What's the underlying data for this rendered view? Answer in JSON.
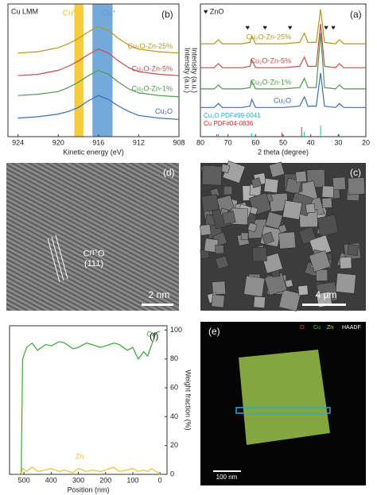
{
  "chart_data": [
    {
      "type": "line",
      "panel": "(b)",
      "title": "Cu LMM",
      "xlabel": "Kinetic energy (eV)",
      "ylabel": "Intensity (a.u.)",
      "xlim": [
        925,
        908
      ],
      "xticks": [
        924,
        920,
        916,
        912,
        908
      ],
      "ylim": [
        0,
        100
      ],
      "x": [
        924,
        922,
        920,
        919,
        918,
        917,
        916,
        915,
        914,
        913,
        912,
        910,
        908
      ],
      "series": [
        {
          "name": "Cu₂O",
          "color": "#3a6fb0",
          "values": [
            14,
            15,
            17,
            19,
            22,
            27,
            31,
            28,
            23,
            19,
            16,
            14,
            13
          ]
        },
        {
          "name": "Cu₂O-Zn-1%",
          "color": "#4f9a4a",
          "values": [
            31,
            32,
            34,
            37,
            41,
            46,
            50,
            47,
            41,
            36,
            33,
            31,
            30
          ]
        },
        {
          "name": "Cu₂O-Zn-5%",
          "color": "#c0504d",
          "values": [
            46,
            47,
            50,
            53,
            57,
            62,
            66,
            63,
            57,
            52,
            49,
            47,
            46
          ]
        },
        {
          "name": "Cu₂O-Zn-25%",
          "color": "#b8961e",
          "values": [
            63,
            64,
            67,
            70,
            74,
            79,
            83,
            80,
            74,
            69,
            66,
            64,
            63
          ]
        }
      ],
      "bands": [
        {
          "label": "Cu⁰",
          "color": "#f5c21b",
          "range": [
            918.4,
            917.5
          ]
        },
        {
          "label": "Cu⁺",
          "color": "#5b9bd5",
          "range": [
            916.6,
            914.6
          ]
        }
      ]
    },
    {
      "type": "line",
      "panel": "(a)",
      "legend": "♥ ZnO",
      "marker": "♥",
      "xlabel": "2 theta (degree)",
      "ylabel": "Intensity (a.u.)",
      "xlim": [
        80,
        20
      ],
      "xticks": [
        80,
        70,
        60,
        50,
        40,
        30,
        20
      ],
      "ylim": [
        0,
        100
      ],
      "x": [
        80,
        75,
        73.5,
        72,
        65,
        62,
        61.4,
        60,
        50,
        44,
        42.3,
        41,
        38,
        36.4,
        35,
        31,
        29.6,
        28,
        20
      ],
      "series": [
        {
          "name": "Cu₂O",
          "color": "#3a6fb0",
          "values": [
            22,
            22,
            25,
            22,
            22,
            23,
            28,
            22,
            22,
            23,
            30,
            23,
            23,
            48,
            23,
            22,
            25,
            22,
            22
          ]
        },
        {
          "name": "Cu₂O-Zn-1%",
          "color": "#4f9a4a",
          "values": [
            36,
            36,
            39,
            36,
            36,
            37,
            42,
            36,
            36,
            37,
            44,
            37,
            37,
            78,
            37,
            36,
            39,
            36,
            36
          ]
        },
        {
          "name": "Cu₂O-Zn-5%",
          "color": "#c0504d",
          "values": [
            52,
            52,
            55,
            52,
            52,
            53,
            58,
            52,
            52,
            53,
            60,
            53,
            53,
            85,
            53,
            52,
            55,
            52,
            52
          ]
        },
        {
          "name": "Cu₂O-Zn-25%",
          "color": "#b8961e",
          "values": [
            70,
            70,
            73,
            70,
            70,
            71,
            76,
            70,
            70,
            71,
            78,
            71,
            71,
            96,
            71,
            70,
            73,
            70,
            70
          ]
        }
      ],
      "zno_peaks": [
        31.8,
        34.4,
        47.5,
        56.6,
        62.9
      ],
      "references": [
        {
          "name": "Cu₂O PDF#99-0041",
          "color": "#1ab0d0",
          "x": [
            29.6,
            36.4,
            42.3,
            61.4,
            73.5
          ],
          "values": [
            3,
            14,
            6,
            4,
            3
          ]
        },
        {
          "name": "Cu PDF#04-0836",
          "color": "#d03030",
          "x": [
            43.3,
            50.4,
            74.1
          ],
          "values": [
            12,
            5,
            3
          ]
        }
      ]
    },
    {
      "type": "line",
      "panel": "(f)",
      "xlabel": "Position (nm)",
      "ylabel": "Weight fraction (%)",
      "y_axis_side": "right",
      "xlim": [
        553,
        -26
      ],
      "xticks": [
        500,
        400,
        300,
        200,
        100,
        0
      ],
      "ylim": [
        0,
        103
      ],
      "yticks": [
        0,
        20,
        40,
        60,
        80,
        100
      ],
      "x": [
        520,
        510,
        505,
        490,
        470,
        450,
        420,
        400,
        370,
        350,
        320,
        300,
        270,
        250,
        220,
        200,
        170,
        150,
        120,
        100,
        80,
        60,
        45,
        30,
        15,
        5,
        0
      ],
      "series": [
        {
          "name": "Cu",
          "color": "#3aa63a",
          "values": [
            0,
            1,
            80,
            88,
            91,
            86,
            90,
            89,
            92,
            91,
            87,
            88,
            91,
            90,
            88,
            89,
            91,
            90,
            86,
            88,
            80,
            85,
            82,
            90,
            98,
            99,
            99
          ]
        },
        {
          "name": "Zn",
          "color": "#e6c229",
          "values": [
            0,
            1,
            4,
            2,
            5,
            2,
            3,
            4,
            2,
            3,
            1,
            4,
            2,
            3,
            2,
            3,
            5,
            2,
            3,
            4,
            2,
            3,
            2,
            4,
            2,
            1,
            0
          ]
        }
      ]
    }
  ],
  "images": {
    "tem": {
      "panel": "(d)",
      "label": "Cu₂O",
      "plane": "(111)",
      "scale": "2 nm"
    },
    "sem": {
      "panel": "(c)",
      "scale": "4 μm"
    },
    "eds": {
      "panel": "(e)",
      "channels": [
        "HAADF",
        "O",
        "Cu",
        "Zn"
      ],
      "scale": "100 nm"
    }
  }
}
